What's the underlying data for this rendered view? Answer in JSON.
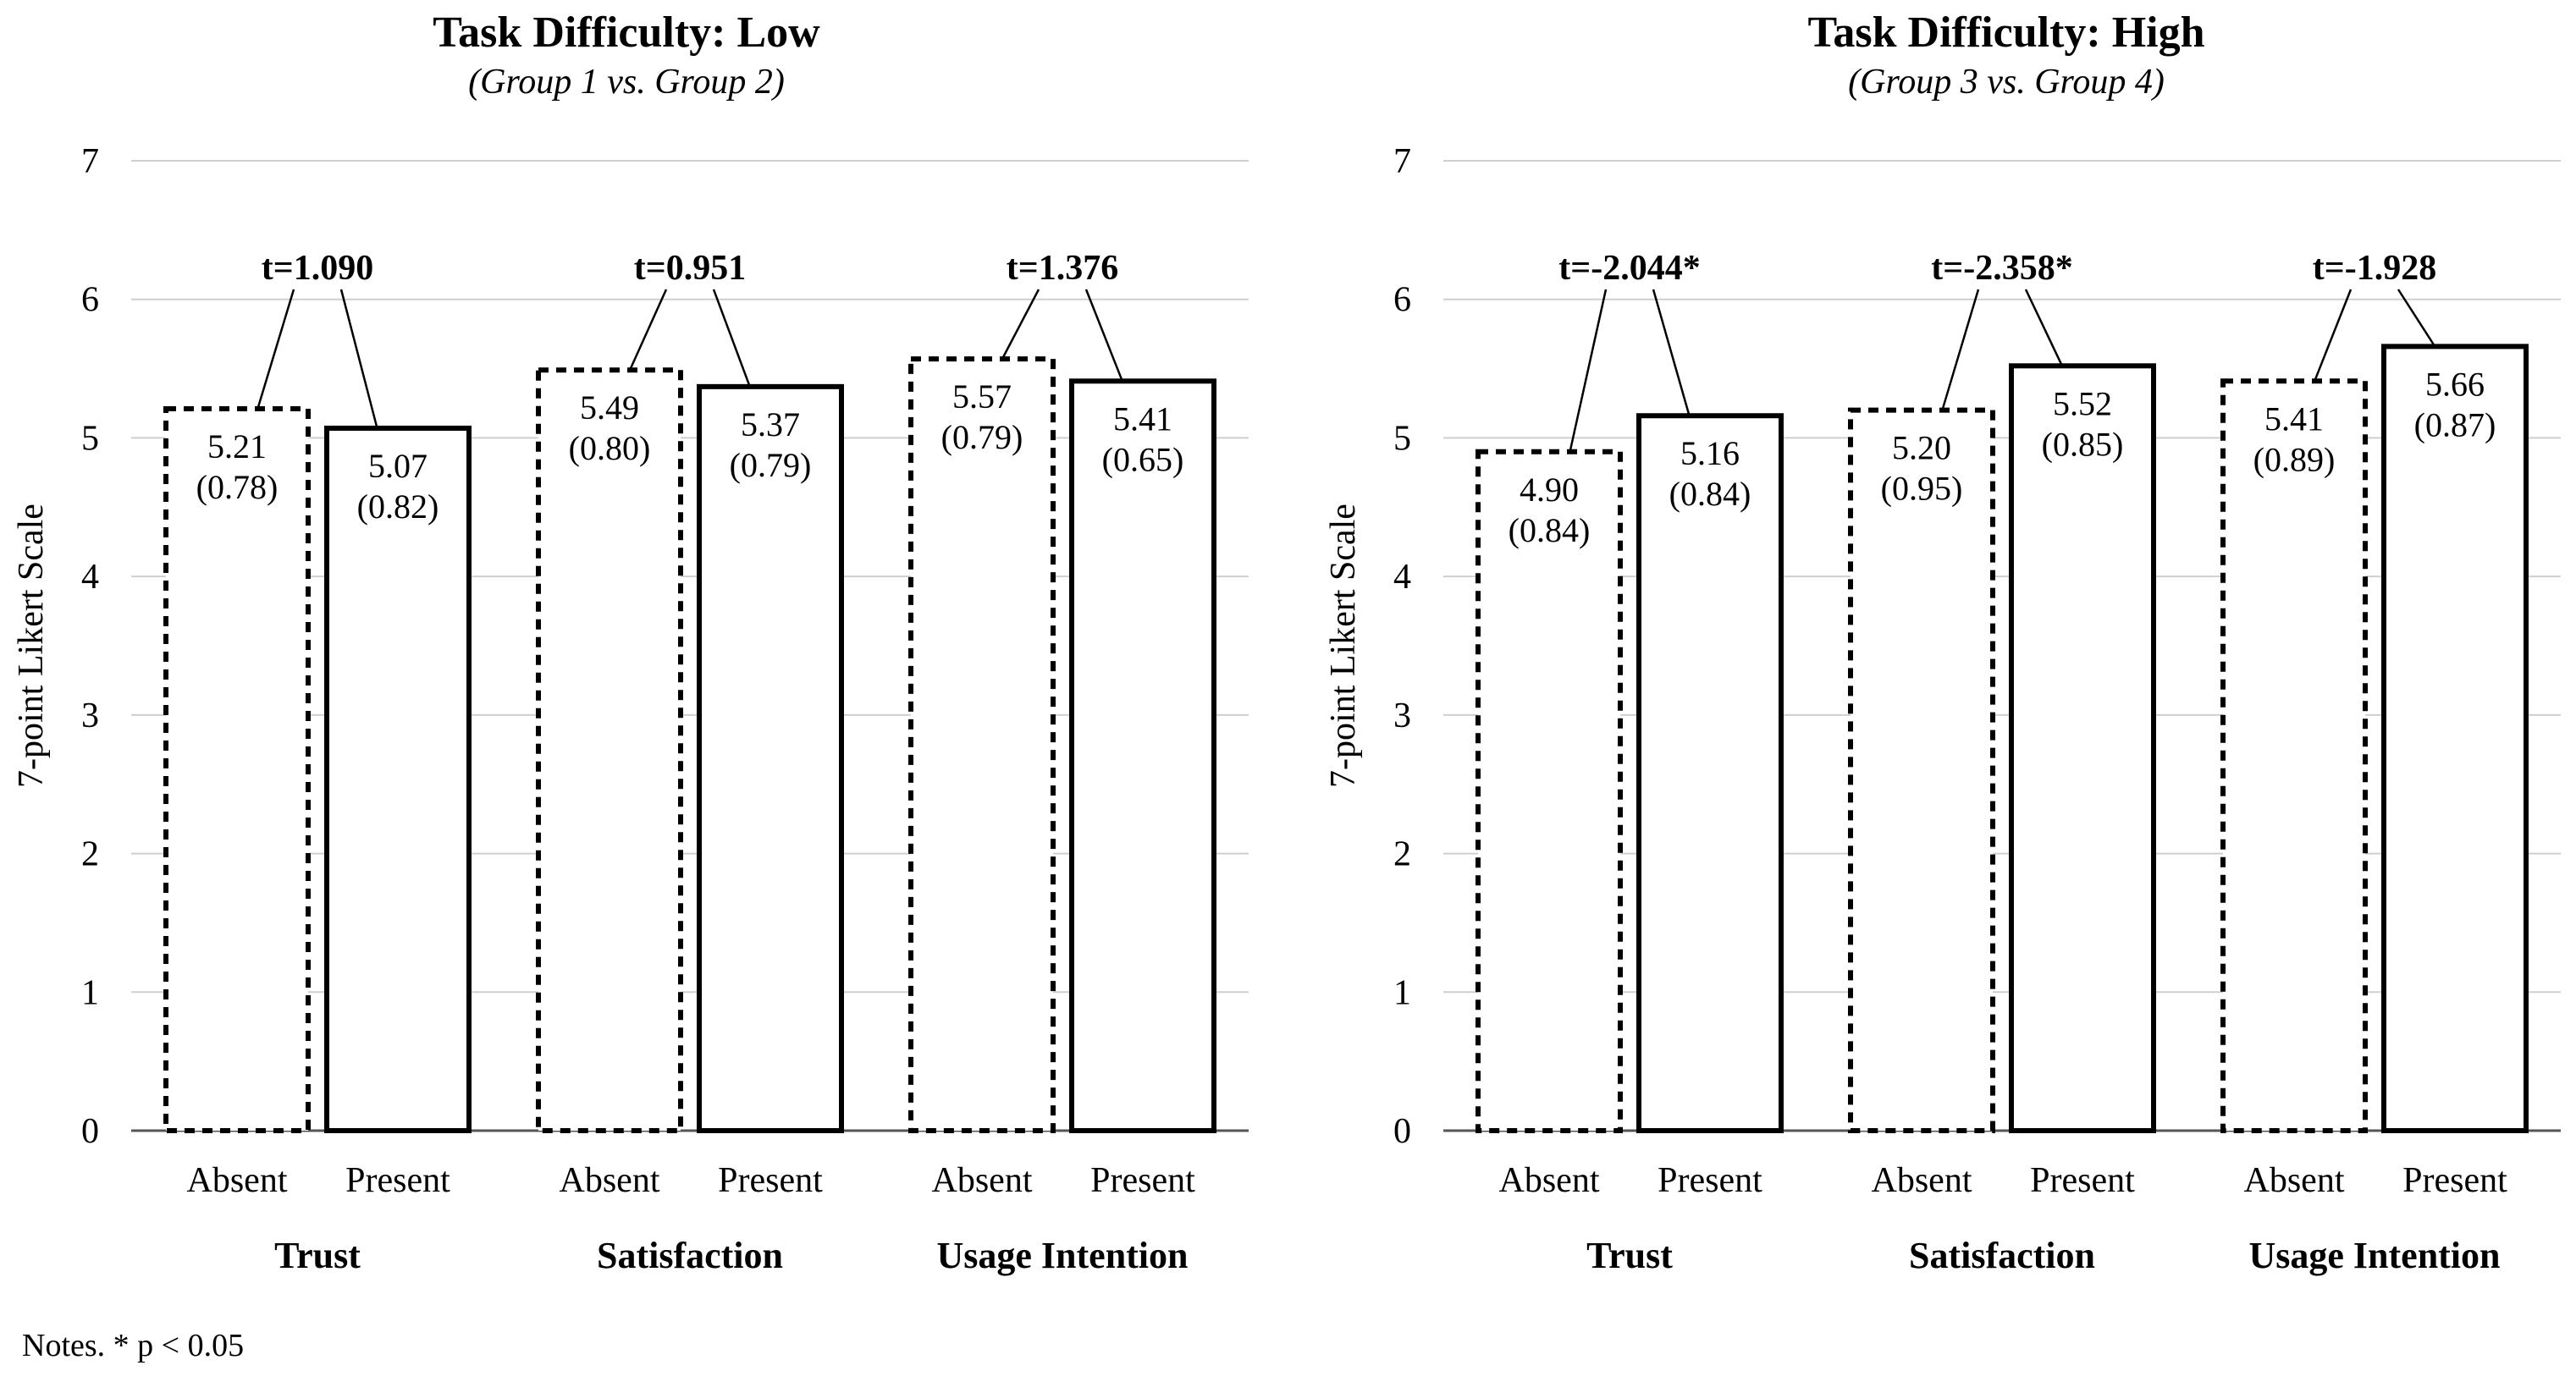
{
  "chart_data": [
    {
      "type": "bar",
      "title": "Task Difficulty: Low",
      "subtitle": "(Group 1 vs. Group 2)",
      "ylabel": "7-point Likert Scale",
      "ylim": [
        0,
        7
      ],
      "yticks": [
        0,
        1,
        2,
        3,
        4,
        5,
        6,
        7
      ],
      "grid": true,
      "groups": [
        {
          "name": "Trust",
          "t_label": "t=1.090",
          "bars": [
            {
              "label": "Absent",
              "value": 5.21,
              "value_label": "5.21",
              "sd_label": "(0.78)",
              "style": "dashed"
            },
            {
              "label": "Present",
              "value": 5.07,
              "value_label": "5.07",
              "sd_label": "(0.82)",
              "style": "solid"
            }
          ]
        },
        {
          "name": "Satisfaction",
          "t_label": "t=0.951",
          "bars": [
            {
              "label": "Absent",
              "value": 5.49,
              "value_label": "5.49",
              "sd_label": "(0.80)",
              "style": "dashed"
            },
            {
              "label": "Present",
              "value": 5.37,
              "value_label": "5.37",
              "sd_label": "(0.79)",
              "style": "solid"
            }
          ]
        },
        {
          "name": "Usage Intention",
          "t_label": "t=1.376",
          "bars": [
            {
              "label": "Absent",
              "value": 5.57,
              "value_label": "5.57",
              "sd_label": "(0.79)",
              "style": "dashed"
            },
            {
              "label": "Present",
              "value": 5.41,
              "value_label": "5.41",
              "sd_label": "(0.65)",
              "style": "solid"
            }
          ]
        }
      ]
    },
    {
      "type": "bar",
      "title": "Task Difficulty: High",
      "subtitle": "(Group 3 vs. Group 4)",
      "ylabel": "7-point Likert Scale",
      "ylim": [
        0,
        7
      ],
      "yticks": [
        0,
        1,
        2,
        3,
        4,
        5,
        6,
        7
      ],
      "grid": true,
      "groups": [
        {
          "name": "Trust",
          "t_label": "t=-2.044*",
          "bars": [
            {
              "label": "Absent",
              "value": 4.9,
              "value_label": "4.90",
              "sd_label": "(0.84)",
              "style": "dashed"
            },
            {
              "label": "Present",
              "value": 5.16,
              "value_label": "5.16",
              "sd_label": "(0.84)",
              "style": "solid"
            }
          ]
        },
        {
          "name": "Satisfaction",
          "t_label": "t=-2.358*",
          "bars": [
            {
              "label": "Absent",
              "value": 5.2,
              "value_label": "5.20",
              "sd_label": "(0.95)",
              "style": "dashed"
            },
            {
              "label": "Present",
              "value": 5.52,
              "value_label": "5.52",
              "sd_label": "(0.85)",
              "style": "solid"
            }
          ]
        },
        {
          "name": "Usage Intention",
          "t_label": "t=-1.928",
          "bars": [
            {
              "label": "Absent",
              "value": 5.41,
              "value_label": "5.41",
              "sd_label": "(0.89)",
              "style": "dashed"
            },
            {
              "label": "Present",
              "value": 5.66,
              "value_label": "5.66",
              "sd_label": "(0.87)",
              "style": "solid"
            }
          ]
        }
      ]
    }
  ],
  "notes": "Notes. * p < 0.05"
}
